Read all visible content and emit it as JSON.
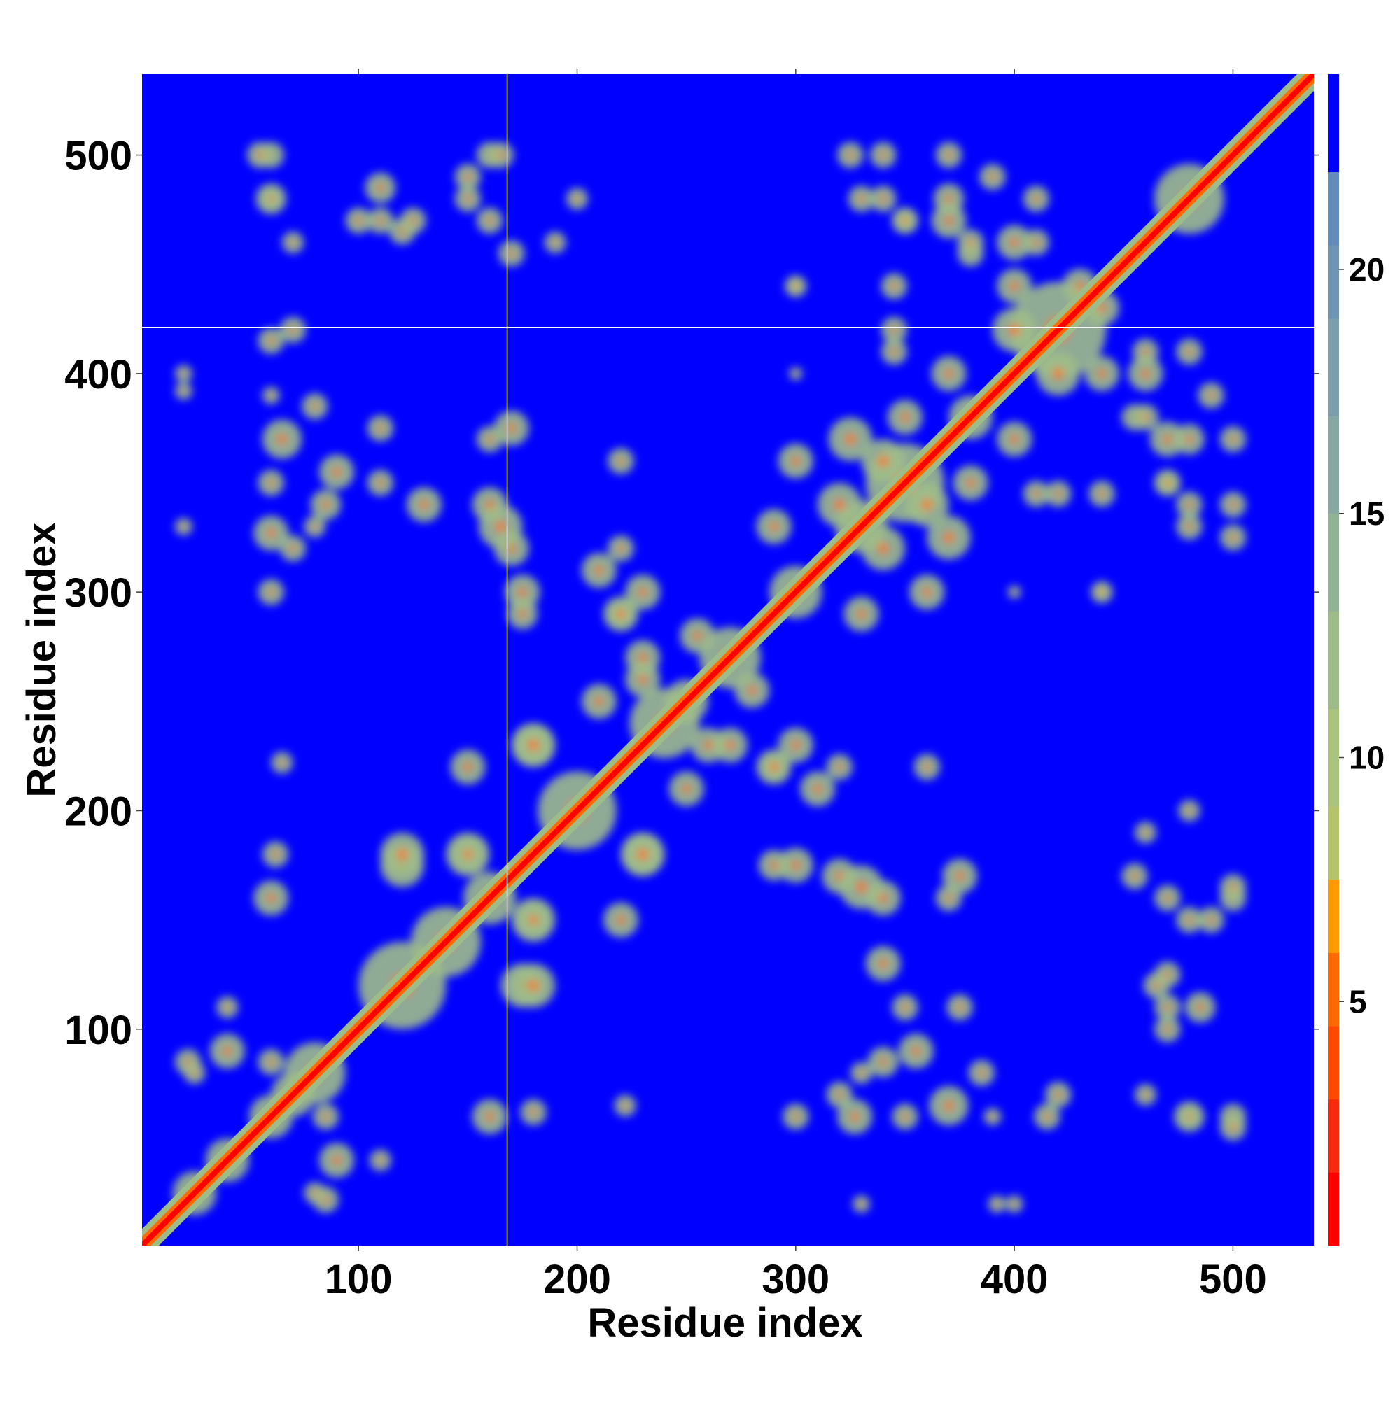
{
  "chart_data": {
    "type": "heatmap",
    "title": "",
    "xlabel": "Residue index",
    "ylabel": "Residue index",
    "xlim": [
      1,
      537
    ],
    "ylim": [
      1,
      537
    ],
    "xticks": [
      100,
      200,
      300,
      400,
      500
    ],
    "yticks": [
      100,
      200,
      300,
      400,
      500
    ],
    "colorbar": {
      "ticks": [
        5,
        10,
        15,
        20
      ],
      "range": [
        0,
        24
      ],
      "bands": [
        {
          "from": 0,
          "to": 1.5,
          "color": "#ff0000"
        },
        {
          "from": 1.5,
          "to": 3,
          "color": "#f52a0f"
        },
        {
          "from": 3,
          "to": 4.5,
          "color": "#ff4a00"
        },
        {
          "from": 4.5,
          "to": 6,
          "color": "#ff6a00"
        },
        {
          "from": 6,
          "to": 7.5,
          "color": "#ff9a00"
        },
        {
          "from": 7.5,
          "to": 9,
          "color": "#b5c46a"
        },
        {
          "from": 9,
          "to": 11,
          "color": "#a8c47e"
        },
        {
          "from": 11,
          "to": 13,
          "color": "#9ebc8a"
        },
        {
          "from": 13,
          "to": 15,
          "color": "#92b296"
        },
        {
          "from": 15,
          "to": 17,
          "color": "#86a8a2"
        },
        {
          "from": 17,
          "to": 19,
          "color": "#7a9eac"
        },
        {
          "from": 19,
          "to": 20.5,
          "color": "#6f94b4"
        },
        {
          "from": 20.5,
          "to": 22,
          "color": "#638cba"
        },
        {
          "from": 22,
          "to": 24,
          "color": "#0000ff"
        }
      ]
    },
    "background_color": "#0000ff",
    "diagonal_color": "#ff0000",
    "contact_color": "#9ebc8a",
    "hot_color": "#ff6a00",
    "crosshair": {
      "x": 168,
      "y": 421,
      "color": "#ffffff"
    },
    "contact_blobs": [
      [
        25,
        25,
        10
      ],
      [
        40,
        40,
        10
      ],
      [
        60,
        60,
        10
      ],
      [
        80,
        80,
        14
      ],
      [
        120,
        120,
        20
      ],
      [
        140,
        140,
        16
      ],
      [
        160,
        160,
        12
      ],
      [
        200,
        200,
        18
      ],
      [
        240,
        240,
        16
      ],
      [
        270,
        270,
        14
      ],
      [
        300,
        300,
        12
      ],
      [
        330,
        330,
        12
      ],
      [
        350,
        350,
        18
      ],
      [
        380,
        380,
        10
      ],
      [
        420,
        420,
        22
      ],
      [
        480,
        480,
        16
      ],
      [
        85,
        22,
        6
      ],
      [
        90,
        40,
        8
      ],
      [
        70,
        70,
        10
      ],
      [
        60,
        85,
        6
      ],
      [
        40,
        110,
        5
      ],
      [
        25,
        80,
        5
      ],
      [
        60,
        160,
        8
      ],
      [
        62,
        180,
        6
      ],
      [
        65,
        222,
        5
      ],
      [
        60,
        327,
        8
      ],
      [
        85,
        340,
        7
      ],
      [
        90,
        355,
        8
      ],
      [
        65,
        370,
        9
      ],
      [
        80,
        385,
        6
      ],
      [
        110,
        350,
        6
      ],
      [
        110,
        375,
        6
      ],
      [
        20,
        392,
        4
      ],
      [
        60,
        415,
        6
      ],
      [
        120,
        465,
        6
      ],
      [
        100,
        470,
        6
      ],
      [
        110,
        485,
        7
      ],
      [
        70,
        460,
        5
      ],
      [
        60,
        480,
        7
      ],
      [
        60,
        500,
        6
      ],
      [
        150,
        490,
        6
      ],
      [
        160,
        500,
        6
      ],
      [
        170,
        455,
        6
      ],
      [
        120,
        175,
        10
      ],
      [
        150,
        180,
        10
      ],
      [
        180,
        230,
        10
      ],
      [
        180,
        120,
        10
      ],
      [
        180,
        150,
        8
      ],
      [
        220,
        150,
        8
      ],
      [
        230,
        180,
        10
      ],
      [
        170,
        320,
        8
      ],
      [
        165,
        330,
        10
      ],
      [
        170,
        375,
        8
      ],
      [
        175,
        290,
        7
      ],
      [
        220,
        290,
        6
      ],
      [
        220,
        320,
        6
      ],
      [
        220,
        360,
        6
      ],
      [
        250,
        250,
        10
      ],
      [
        210,
        250,
        8
      ],
      [
        260,
        230,
        8
      ],
      [
        290,
        220,
        8
      ],
      [
        310,
        210,
        8
      ],
      [
        340,
        160,
        8
      ],
      [
        300,
        175,
        8
      ],
      [
        230,
        270,
        8
      ],
      [
        280,
        255,
        8
      ],
      [
        300,
        230,
        8
      ],
      [
        330,
        290,
        8
      ],
      [
        360,
        300,
        8
      ],
      [
        370,
        325,
        10
      ],
      [
        320,
        340,
        10
      ],
      [
        340,
        360,
        10
      ],
      [
        350,
        380,
        8
      ],
      [
        370,
        400,
        8
      ],
      [
        345,
        410,
        6
      ],
      [
        345,
        440,
        6
      ],
      [
        380,
        455,
        6
      ],
      [
        370,
        470,
        8
      ],
      [
        350,
        470,
        6
      ],
      [
        325,
        500,
        6
      ],
      [
        300,
        440,
        4
      ],
      [
        300,
        400,
        3
      ],
      [
        340,
        480,
        6
      ],
      [
        400,
        460,
        8
      ],
      [
        400,
        420,
        10
      ],
      [
        440,
        400,
        8
      ],
      [
        430,
        440,
        8
      ],
      [
        420,
        345,
        6
      ],
      [
        440,
        300,
        5
      ],
      [
        460,
        380,
        6
      ],
      [
        480,
        370,
        7
      ],
      [
        470,
        350,
        6
      ],
      [
        500,
        370,
        6
      ],
      [
        500,
        340,
        6
      ],
      [
        480,
        330,
        6
      ],
      [
        460,
        410,
        6
      ],
      [
        480,
        410,
        6
      ],
      [
        490,
        390,
        6
      ],
      [
        420,
        70,
        6
      ],
      [
        400,
        20,
        4
      ],
      [
        390,
        60,
        4
      ],
      [
        480,
        60,
        5
      ],
      [
        470,
        110,
        6
      ],
      [
        500,
        55,
        6
      ],
      [
        470,
        125,
        6
      ],
      [
        320,
        70,
        6
      ],
      [
        350,
        60,
        6
      ],
      [
        340,
        130,
        8
      ],
      [
        370,
        160,
        6
      ],
      [
        300,
        60,
        6
      ],
      [
        330,
        20,
        4
      ],
      [
        330,
        80,
        5
      ],
      [
        480,
        150,
        6
      ],
      [
        470,
        160,
        6
      ],
      [
        500,
        165,
        6
      ],
      [
        460,
        190,
        5
      ],
      [
        480,
        200,
        5
      ]
    ]
  }
}
